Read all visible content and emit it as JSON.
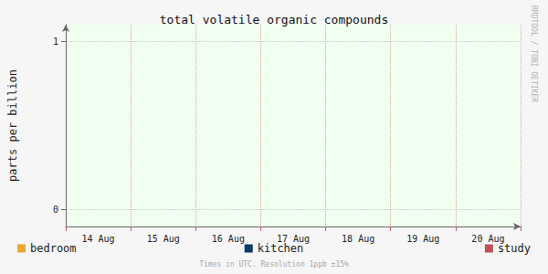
{
  "chart_data": {
    "type": "line",
    "title": "total volatile organic compounds",
    "ylabel": "parts per billion",
    "categories": [
      "14 Aug",
      "15 Aug",
      "16 Aug",
      "17 Aug",
      "18 Aug",
      "19 Aug",
      "20 Aug"
    ],
    "series": [
      {
        "name": "bedroom",
        "color": "#e8a838",
        "values": [
          null,
          null,
          null,
          null,
          null,
          null,
          null
        ]
      },
      {
        "name": "kitchen",
        "color": "#0b3a6b",
        "values": [
          null,
          null,
          null,
          null,
          null,
          null,
          null
        ]
      },
      {
        "name": "study",
        "color": "#c05058",
        "values": [
          null,
          null,
          null,
          null,
          null,
          null,
          null
        ]
      }
    ],
    "ylim": [
      -0.1,
      1.1
    ],
    "yticks": [
      0,
      1
    ],
    "grid": true,
    "annotations": [
      "RRDTOOL / TOBI OETIKER",
      "Times in UTC. Resolution 1ppb ±15%"
    ]
  }
}
